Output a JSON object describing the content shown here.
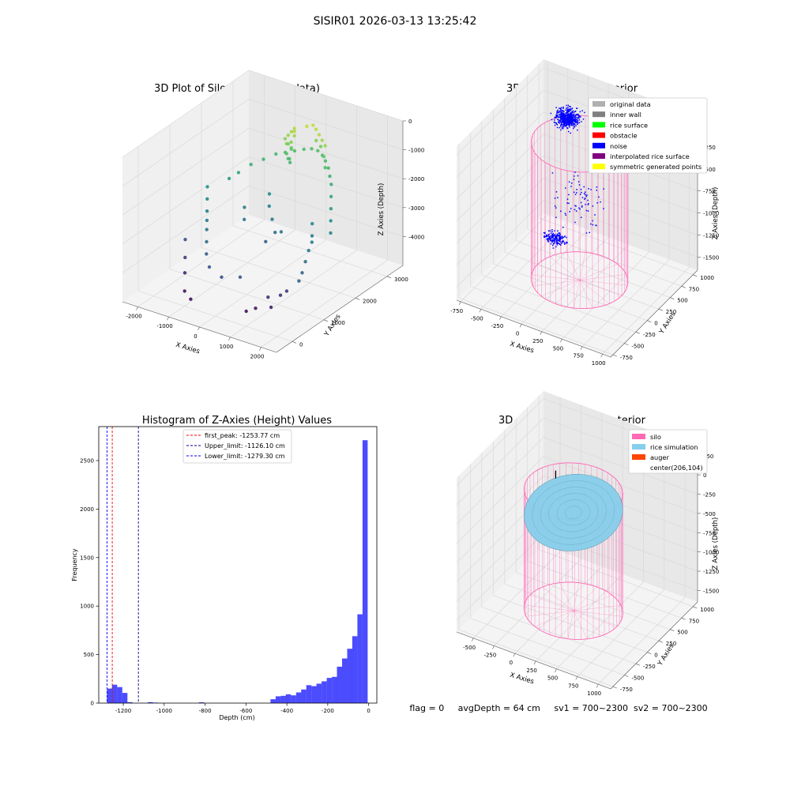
{
  "figure": {
    "suptitle": "SISIR01 2026-03-13 13:25:42",
    "status": "flag = 0     avgDepth = 64 cm     sv1 = 700~2300  sv2 = 700~2300"
  },
  "colors": {
    "grid": "#d9d9d9",
    "pane_left": "#f0f0f0",
    "pane_right": "#e8e8e8",
    "pane_floor": "#f4f4f4",
    "silo": "#ff69b4",
    "rice": "#87ceeb",
    "hist_bar": "#0000ff"
  },
  "chart_data": [
    {
      "type": "scatter3d",
      "title": "3D Plot of Silo Interior(row data)",
      "xlabel": "X Axies",
      "ylabel": "Y Axies",
      "zlabel": "Z Axies (Depth)",
      "xlim": [
        -2500,
        2500
      ],
      "ylim": [
        -500,
        3500
      ],
      "zlim": [
        -5000,
        0
      ],
      "xticks": [
        "-2000",
        "-1000",
        "0",
        "1000",
        "2000"
      ],
      "xtick_values": [
        -2000,
        -1000,
        0,
        1000,
        2000
      ],
      "yticks": [
        "0",
        "1000",
        "2000",
        "3000"
      ],
      "ytick_values": [
        0,
        1000,
        2000,
        3000
      ],
      "zticks": [
        "0",
        "-1000",
        "-2000",
        "-3000",
        "-4000"
      ],
      "ztick_values": [
        0,
        -1000,
        -2000,
        -3000,
        -4000
      ],
      "colormap": "viridis",
      "points": [
        [
          -1600,
          2000,
          -2300
        ],
        [
          -1400,
          2100,
          -2100
        ],
        [
          -1200,
          2300,
          -1900
        ],
        [
          -1000,
          2500,
          -1800
        ],
        [
          -800,
          2700,
          -1700
        ],
        [
          -600,
          2800,
          -1650
        ],
        [
          -400,
          2900,
          -1600
        ],
        [
          -200,
          3000,
          -1550
        ],
        [
          0,
          3050,
          -1500
        ],
        [
          200,
          3050,
          -1500
        ],
        [
          400,
          3000,
          -1550
        ],
        [
          600,
          2900,
          -1600
        ],
        [
          800,
          2800,
          -1700
        ],
        [
          1000,
          2650,
          -1800
        ],
        [
          1200,
          2500,
          -1900
        ],
        [
          1400,
          2300,
          -2100
        ],
        [
          1600,
          2100,
          -2300
        ],
        [
          1800,
          1900,
          -2500
        ],
        [
          2000,
          1700,
          -2700
        ],
        [
          -1800,
          1500,
          -2700
        ],
        [
          -1600,
          1300,
          -2900
        ],
        [
          -1400,
          1100,
          -3000
        ],
        [
          -1200,
          900,
          -3100
        ],
        [
          -2000,
          1700,
          -2500
        ],
        [
          -1000,
          700,
          -3300
        ],
        [
          -800,
          500,
          -3500
        ],
        [
          -500,
          300,
          -3700
        ],
        [
          0,
          200,
          -3800
        ],
        [
          500,
          300,
          -3700
        ],
        [
          1800,
          1200,
          -3000
        ],
        [
          1900,
          1000,
          -3200
        ],
        [
          2000,
          800,
          -3400
        ],
        [
          2100,
          600,
          -3500
        ],
        [
          1700,
          1400,
          -2900
        ],
        [
          -2000,
          1000,
          -3800
        ],
        [
          -1800,
          800,
          -4200
        ],
        [
          -1500,
          500,
          -4400
        ],
        [
          -1200,
          200,
          -4700
        ],
        [
          -900,
          100,
          -4800
        ],
        [
          1200,
          500,
          -4300
        ],
        [
          1400,
          400,
          -4500
        ],
        [
          1500,
          600,
          -4200
        ],
        [
          1600,
          700,
          -4100
        ],
        [
          1000,
          300,
          -4600
        ],
        [
          800,
          200,
          -4700
        ],
        [
          -300,
          2600,
          -800
        ],
        [
          -250,
          2650,
          -700
        ],
        [
          -200,
          2700,
          -600
        ],
        [
          -150,
          2650,
          -650
        ],
        [
          -100,
          2600,
          -750
        ],
        [
          -350,
          2550,
          -900
        ],
        [
          -250,
          2500,
          -1000
        ],
        [
          -150,
          2550,
          -950
        ],
        [
          -300,
          2600,
          -1100
        ],
        [
          -200,
          2600,
          -1200
        ],
        [
          -250,
          2650,
          -1300
        ],
        [
          -300,
          2550,
          -1400
        ],
        [
          -200,
          2500,
          -1500
        ],
        [
          -260,
          2600,
          -1600
        ],
        [
          -220,
          2580,
          -1700
        ],
        [
          100,
          2800,
          -500
        ],
        [
          250,
          2850,
          -450
        ],
        [
          400,
          2800,
          -500
        ],
        [
          550,
          2750,
          -600
        ],
        [
          700,
          2700,
          -700
        ],
        [
          850,
          2650,
          -800
        ],
        [
          300,
          2900,
          -1000
        ],
        [
          500,
          2850,
          -1100
        ],
        [
          700,
          2750,
          -1300
        ],
        [
          900,
          2600,
          -1500
        ],
        [
          -500,
          2200,
          -2600
        ],
        [
          -300,
          2000,
          -2800
        ],
        [
          0,
          1800,
          -3000
        ],
        [
          300,
          1600,
          -3200
        ],
        [
          600,
          1500,
          -3000
        ],
        [
          -900,
          1800,
          -2900
        ],
        [
          -700,
          1600,
          -3100
        ],
        [
          1300,
          1800,
          -2700
        ],
        [
          1500,
          1600,
          -2900
        ],
        [
          200,
          1400,
          -3400
        ]
      ]
    },
    {
      "type": "scatter3d",
      "title": "3D classify of Silo Interior",
      "xlabel": "X Axies",
      "ylabel": "Y Axies",
      "zlabel": "Z Axies (Depth)",
      "xlim": [
        -800,
        1100
      ],
      "ylim": [
        -800,
        1100
      ],
      "zlim": [
        -1650,
        100
      ],
      "xticks": [
        "-750",
        "-500",
        "-250",
        "0",
        "250",
        "500",
        "750",
        "1000"
      ],
      "xtick_values": [
        -750,
        -500,
        -250,
        0,
        250,
        500,
        750,
        1000
      ],
      "yticks": [
        "-750",
        "-500",
        "-250",
        "0",
        "250",
        "500",
        "750",
        "1000"
      ],
      "ytick_values": [
        -750,
        -500,
        -250,
        0,
        250,
        500,
        750,
        1000
      ],
      "zticks": [
        "0",
        "-250",
        "-500",
        "-750",
        "-1000",
        "-1250",
        "-1500"
      ],
      "ztick_values": [
        0,
        -250,
        -500,
        -750,
        -1000,
        -1250,
        -1500
      ],
      "legend": {
        "placement": "top-right",
        "entries": [
          {
            "label": "original data",
            "color": "#b0b0b0"
          },
          {
            "label": "inner wall",
            "color": "#808080"
          },
          {
            "label": "rice surface",
            "color": "#00ff00"
          },
          {
            "label": "obstacle",
            "color": "#ff0000"
          },
          {
            "label": "noise",
            "color": "#0000ff"
          },
          {
            "label": "interpolated rice surface",
            "color": "#800080"
          },
          {
            "label": "symmetric generated points",
            "color": "#ffff00"
          }
        ]
      },
      "silo": {
        "center": [
          206,
          104
        ],
        "radius": 520,
        "top": 0,
        "bottom": -1550,
        "color": "#ff69b4"
      },
      "noise_clusters": [
        {
          "center": [
            -250,
            650,
            -150
          ],
          "spread": [
            200,
            180,
            130
          ],
          "count": 520
        },
        {
          "center": [
            -150,
            200,
            -1250
          ],
          "spread": [
            180,
            120,
            70
          ],
          "count": 170
        },
        {
          "center": [
            150,
            200,
            -700
          ],
          "spread": [
            400,
            300,
            450
          ],
          "count": 80
        }
      ],
      "inner_wall_cluster": {
        "center": [
          500,
          650,
          -150
        ],
        "spread": [
          140,
          120,
          80
        ],
        "count": 45
      },
      "symmetric_cluster": {
        "center": [
          450,
          500,
          -230
        ],
        "spread": [
          70,
          50,
          30
        ],
        "count": 12
      }
    },
    {
      "type": "bar",
      "title": "Histogram of Z-Axies (Height) Values",
      "xlabel": "Depth (cm)",
      "ylabel": "Frequency",
      "xlim": [
        -1320,
        40
      ],
      "ylim": [
        0,
        2850
      ],
      "xticks": [
        "-1200",
        "-1000",
        "-800",
        "-600",
        "-400",
        "-200",
        "0"
      ],
      "xtick_values": [
        -1200,
        -1000,
        -800,
        -600,
        -400,
        -200,
        0
      ],
      "yticks": [
        "0",
        "500",
        "1000",
        "1500",
        "2000",
        "2500"
      ],
      "ytick_values": [
        0,
        500,
        1000,
        1500,
        2000,
        2500
      ],
      "bin_width": 25,
      "bin_starts": [
        -1280,
        -1255,
        -1230,
        -1205,
        -1180,
        -1080,
        -1055,
        -830,
        -480,
        -455,
        -430,
        -405,
        -380,
        -355,
        -330,
        -305,
        -280,
        -255,
        -230,
        -205,
        -180,
        -155,
        -130,
        -105,
        -80,
        -55,
        -30
      ],
      "values": [
        150,
        190,
        165,
        105,
        10,
        10,
        5,
        8,
        40,
        70,
        75,
        90,
        80,
        110,
        140,
        185,
        175,
        200,
        225,
        260,
        270,
        375,
        460,
        560,
        690,
        915,
        2710
      ],
      "vlines": [
        {
          "x": -1253.77,
          "label": "first_peak: -1253.77 cm",
          "color": "#ff0000"
        },
        {
          "x": -1126.1,
          "label": "Upper_limit: -1126.10 cm",
          "color": "#00008b"
        },
        {
          "x": -1279.3,
          "label": "Lower_limit: -1279.30 cm",
          "color": "#0000ff"
        }
      ],
      "legend": {
        "placement": "top-center"
      }
    },
    {
      "type": "surface3d",
      "title": "3D simulation of Silo Interior",
      "xlabel": "X Axies",
      "ylabel": "Y Axies",
      "zlabel": "Z Axies (Depth)",
      "xlim": [
        -700,
        1150
      ],
      "ylim": [
        -800,
        1100
      ],
      "zlim": [
        -1650,
        350
      ],
      "xticks": [
        "-500",
        "-250",
        "0",
        "250",
        "500",
        "750",
        "1000"
      ],
      "xtick_values": [
        -500,
        -250,
        0,
        250,
        500,
        750,
        1000
      ],
      "yticks": [
        "-750",
        "-500",
        "-250",
        "0",
        "250",
        "500",
        "750",
        "1000"
      ],
      "ytick_values": [
        -750,
        -500,
        -250,
        0,
        250,
        500,
        750,
        1000
      ],
      "zticks": [
        "250",
        "0",
        "-250",
        "-500",
        "-750",
        "-1000",
        "-1250",
        "-1500"
      ],
      "ztick_values": [
        250,
        0,
        -250,
        -500,
        -750,
        -1000,
        -1250,
        -1500
      ],
      "legend": {
        "placement": "top-right",
        "entries": [
          {
            "label": "silo",
            "color": "#ff69b4"
          },
          {
            "label": "rice simulation",
            "color": "#87ceeb"
          },
          {
            "label": "auger",
            "color": "#ff4500"
          },
          {
            "label": "center(206,104)",
            "color": ""
          }
        ]
      },
      "silo": {
        "center": [
          206,
          104
        ],
        "radius": 520,
        "top": 0,
        "bottom": -1550,
        "color": "#ff69b4"
      },
      "rice_surface": {
        "high_edge_z": -130,
        "low_edge_z": -420,
        "color": "#87ceeb"
      }
    }
  ]
}
